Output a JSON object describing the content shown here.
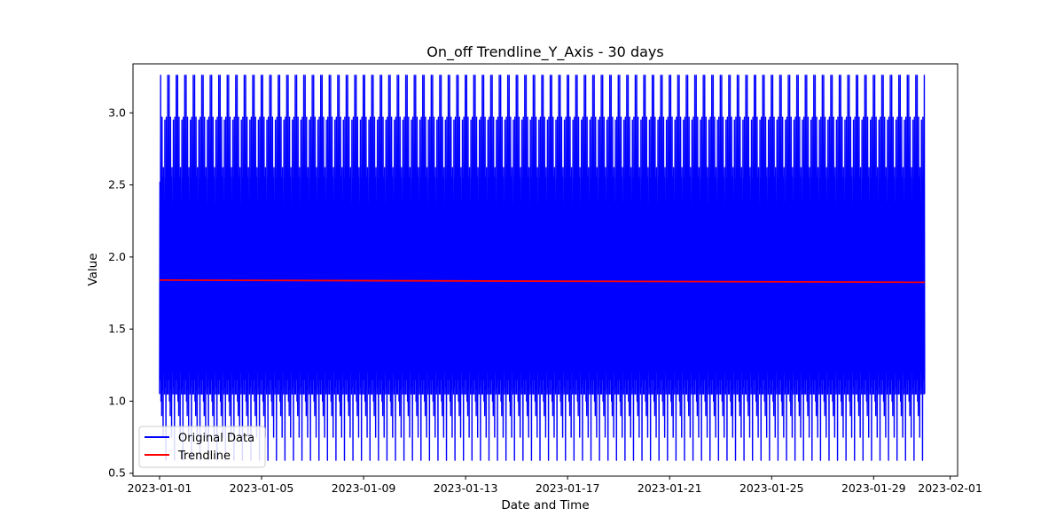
{
  "chart_data": {
    "type": "line",
    "title": "On_off Trendline_Y_Axis - 30 days",
    "xlabel": "Date and Time",
    "ylabel": "Value",
    "xlim": [
      "2022-12-30T23:00",
      "2023-02-01T07:00"
    ],
    "ylim": [
      0.48,
      3.34
    ],
    "x_ticks": [
      "2023-01-01",
      "2023-01-05",
      "2023-01-09",
      "2023-01-13",
      "2023-01-17",
      "2023-01-21",
      "2023-01-25",
      "2023-01-29",
      "2023-02-01"
    ],
    "y_ticks": [
      "0.5",
      "1.0",
      "1.5",
      "2.0",
      "2.5",
      "3.0"
    ],
    "grid": false,
    "legend_position": "lower-left",
    "series": [
      {
        "name": "Original Data",
        "color": "#0000ff",
        "x_start": "2023-01-01T00:00",
        "x_end": "2023-01-31T00:00",
        "cycle_hours": 8,
        "cycle_values": [
          1.05,
          2.52,
          1.15,
          3.26,
          1.0,
          2.33,
          0.9,
          2.97,
          1.08,
          2.55,
          0.75,
          2.62,
          1.2,
          2.33,
          1.05,
          2.95,
          1.1,
          2.54,
          0.59,
          2.97,
          1.15,
          2.54,
          1.05,
          3.26
        ]
      },
      {
        "name": "Trendline",
        "color": "#ff0000",
        "x": [
          "2023-01-01T00:00",
          "2023-01-31T00:00"
        ],
        "y": [
          1.84,
          1.825
        ]
      }
    ]
  }
}
